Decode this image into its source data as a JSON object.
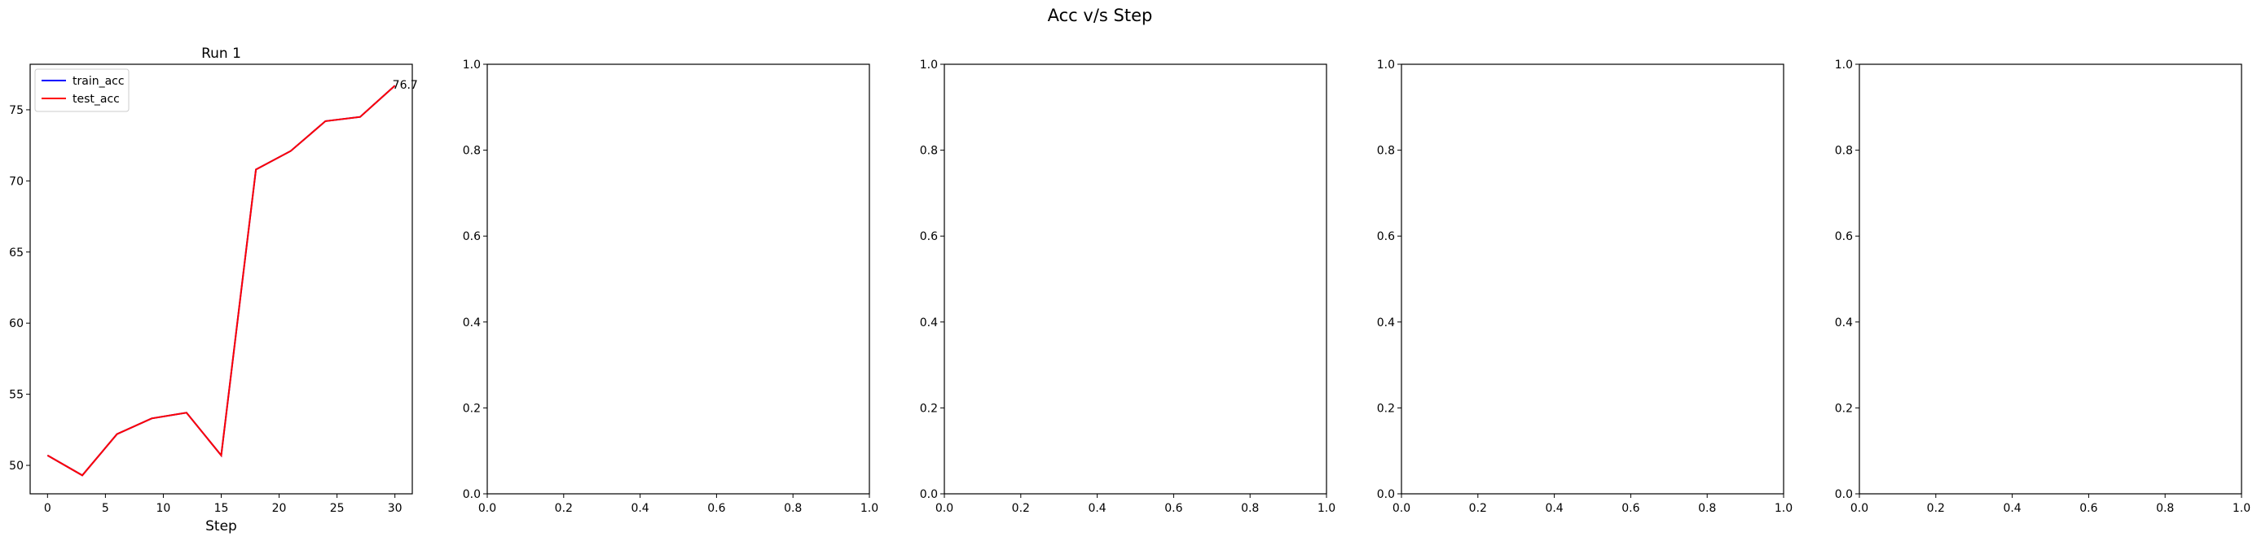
{
  "figure": {
    "suptitle": "Acc v/s Step"
  },
  "chart_data": [
    {
      "type": "line",
      "title": "Run 1",
      "xlabel": "Step",
      "ylabel": "",
      "xlim": [
        -1.5,
        31.5
      ],
      "ylim": [
        48.0,
        78.2
      ],
      "xticks": [
        0,
        5,
        10,
        15,
        20,
        25,
        30
      ],
      "yticks": [
        50,
        55,
        60,
        65,
        70,
        75
      ],
      "legend": "upper-left",
      "x": [
        0,
        3,
        6,
        9,
        12,
        15,
        18,
        21,
        24,
        27,
        30
      ],
      "series": [
        {
          "name": "train_acc",
          "color": "#0000ff",
          "values": [
            50.7,
            49.3,
            52.2,
            53.3,
            53.7,
            50.7,
            70.8,
            72.1,
            74.2,
            74.5,
            76.7
          ]
        },
        {
          "name": "test_acc",
          "color": "#ff0000",
          "values": [
            50.7,
            49.3,
            52.2,
            53.3,
            53.7,
            50.7,
            70.8,
            72.1,
            74.2,
            74.5,
            76.7
          ]
        }
      ],
      "annotations": [
        {
          "x": 30,
          "y": 76.7,
          "text": "76.7"
        }
      ]
    },
    {
      "type": "line",
      "title": "",
      "xlim": [
        0,
        1
      ],
      "ylim": [
        0,
        1
      ],
      "xticks": [
        "0.0",
        "0.2",
        "0.4",
        "0.6",
        "0.8",
        "1.0"
      ],
      "yticks": [
        "0.0",
        "0.2",
        "0.4",
        "0.6",
        "0.8",
        "1.0"
      ],
      "series": []
    },
    {
      "type": "line",
      "title": "",
      "xlim": [
        0,
        1
      ],
      "ylim": [
        0,
        1
      ],
      "xticks": [
        "0.0",
        "0.2",
        "0.4",
        "0.6",
        "0.8",
        "1.0"
      ],
      "yticks": [
        "0.0",
        "0.2",
        "0.4",
        "0.6",
        "0.8",
        "1.0"
      ],
      "series": []
    },
    {
      "type": "line",
      "title": "",
      "xlim": [
        0,
        1
      ],
      "ylim": [
        0,
        1
      ],
      "xticks": [
        "0.0",
        "0.2",
        "0.4",
        "0.6",
        "0.8",
        "1.0"
      ],
      "yticks": [
        "0.0",
        "0.2",
        "0.4",
        "0.6",
        "0.8",
        "1.0"
      ],
      "series": []
    },
    {
      "type": "line",
      "title": "",
      "xlim": [
        0,
        1
      ],
      "ylim": [
        0,
        1
      ],
      "xticks": [
        "0.0",
        "0.2",
        "0.4",
        "0.6",
        "0.8",
        "1.0"
      ],
      "yticks": [
        "0.0",
        "0.2",
        "0.4",
        "0.6",
        "0.8",
        "1.0"
      ],
      "series": []
    }
  ]
}
